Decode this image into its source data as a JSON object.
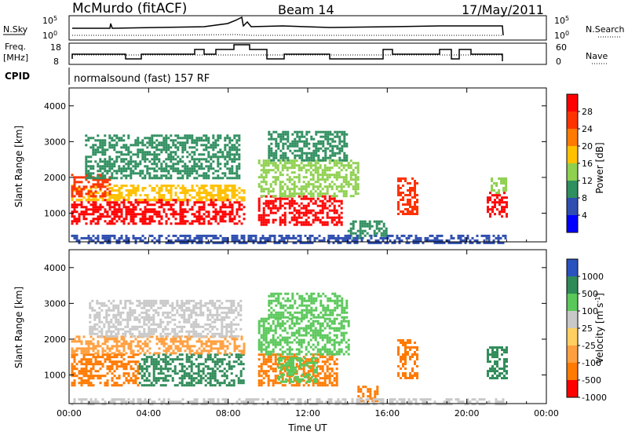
{
  "header": {
    "station": "McMurdo (fitACF)",
    "beam": "Beam 14",
    "date": "17/May/2011"
  },
  "top_panels": {
    "nsky_label": "N.Sky",
    "nsky_tick_hi": "10^5",
    "nsky_tick_lo": "10^0",
    "nsearch_label": "N.Search",
    "freq_label_1": "Freq.",
    "freq_label_2": "[MHz]",
    "freq_tick_hi": "18",
    "freq_tick_lo": "8",
    "nave_tick_hi": "60",
    "nave_tick_lo": "0",
    "nave_label": "Nave",
    "cpid_label": "CPID",
    "cpid_text": "normalsound (fast) 157 RF"
  },
  "chart_data": [
    {
      "type": "heatmap",
      "title": "",
      "xlabel": "",
      "ylabel": "Slant Range [km]",
      "xlim_hours": [
        0,
        24
      ],
      "ylim_km": [
        200,
        4500
      ],
      "x_tick_labels": [
        "00:00",
        "04:00",
        "08:00",
        "12:00",
        "16:00",
        "20:00",
        "00:00"
      ],
      "y_tick_labels": [
        "1000",
        "2000",
        "3000",
        "4000"
      ],
      "colorbar": {
        "label": "Power [dB]",
        "tick_labels": [
          "28",
          "24",
          "20",
          "16",
          "12",
          "8",
          "4"
        ],
        "colors": [
          "#ff0000",
          "#ff3300",
          "#ff7a00",
          "#ffc000",
          "#8fd04f",
          "#2f8f5f",
          "#2f4fb0",
          "#0000ff"
        ]
      },
      "regions": [
        {
          "t0": 0.1,
          "t1": 8.8,
          "r0": 700,
          "r1": 1400,
          "level": "28"
        },
        {
          "t0": 0.1,
          "t1": 8.8,
          "r0": 1400,
          "r1": 1800,
          "level": "16"
        },
        {
          "t0": 0.1,
          "t1": 2.0,
          "r0": 1500,
          "r1": 2100,
          "level": "24"
        },
        {
          "t0": 0.8,
          "t1": 8.6,
          "r0": 2000,
          "r1": 3200,
          "level": "8"
        },
        {
          "t0": 9.5,
          "t1": 13.7,
          "r0": 700,
          "r1": 1500,
          "level": "28"
        },
        {
          "t0": 9.5,
          "t1": 14.5,
          "r0": 1500,
          "r1": 2500,
          "level": "12"
        },
        {
          "t0": 10.0,
          "t1": 14.0,
          "r0": 2500,
          "r1": 3300,
          "level": "8"
        },
        {
          "t0": 14.0,
          "t1": 16.0,
          "r0": 300,
          "r1": 800,
          "level": "8"
        },
        {
          "t0": 16.5,
          "t1": 17.5,
          "r0": 1000,
          "r1": 2000,
          "level": "24"
        },
        {
          "t0": 21.0,
          "t1": 22.0,
          "r0": 900,
          "r1": 1600,
          "level": "28"
        },
        {
          "t0": 21.2,
          "t1": 22.0,
          "r0": 1600,
          "r1": 2000,
          "level": "12"
        },
        {
          "t0": 0.1,
          "t1": 22.0,
          "r0": 200,
          "r1": 400,
          "level": "4"
        }
      ]
    },
    {
      "type": "heatmap",
      "title": "",
      "xlabel": "Time UT",
      "ylabel": "Slant Range [km]",
      "xlim_hours": [
        0,
        24
      ],
      "ylim_km": [
        200,
        4500
      ],
      "x_tick_labels": [
        "00:00",
        "04:00",
        "08:00",
        "12:00",
        "16:00",
        "20:00",
        "00:00"
      ],
      "y_tick_labels": [
        "1000",
        "2000",
        "3000",
        "4000"
      ],
      "colorbar": {
        "label": "Velocity [m s^-1]",
        "tick_labels": [
          "1000",
          "500",
          "100",
          "25",
          "-25",
          "-100",
          "-500",
          "-1000"
        ],
        "colors": [
          "#2a52be",
          "#2e8b57",
          "#5ac85a",
          "#c8c8c8",
          "#ffd060",
          "#ffa040",
          "#ff7a00",
          "#ff0000"
        ]
      },
      "regions": [
        {
          "t0": 0.1,
          "t1": 3.5,
          "r0": 700,
          "r1": 1600,
          "level": "-500"
        },
        {
          "t0": 3.5,
          "t1": 8.8,
          "r0": 700,
          "r1": 1600,
          "level": "500"
        },
        {
          "t0": 0.1,
          "t1": 8.8,
          "r0": 1600,
          "r1": 2100,
          "level": "-100"
        },
        {
          "t0": 1.0,
          "t1": 8.6,
          "r0": 2100,
          "r1": 3100,
          "level": "25"
        },
        {
          "t0": 9.5,
          "t1": 13.5,
          "r0": 700,
          "r1": 1600,
          "level": "-500"
        },
        {
          "t0": 10.5,
          "t1": 12.5,
          "r0": 800,
          "r1": 1500,
          "level": "100"
        },
        {
          "t0": 9.5,
          "t1": 14.0,
          "r0": 1600,
          "r1": 2600,
          "level": "100"
        },
        {
          "t0": 10.0,
          "t1": 14.0,
          "r0": 2600,
          "r1": 3300,
          "level": "100"
        },
        {
          "t0": 14.5,
          "t1": 15.5,
          "r0": 300,
          "r1": 700,
          "level": "-500"
        },
        {
          "t0": 16.5,
          "t1": 17.5,
          "r0": 900,
          "r1": 2000,
          "level": "-500"
        },
        {
          "t0": 21.0,
          "t1": 22.0,
          "r0": 900,
          "r1": 1800,
          "level": "500"
        },
        {
          "t0": 0.1,
          "t1": 22.0,
          "r0": 200,
          "r1": 350,
          "level": "25"
        }
      ]
    }
  ]
}
